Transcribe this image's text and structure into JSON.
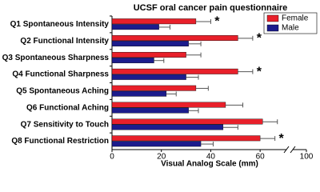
{
  "chart_data": {
    "type": "bar",
    "orientation": "horizontal",
    "title": "UCSF oral cancer pain questionnaire",
    "x_label": "Visual Analog Scale (mm)",
    "categories": [
      "Q1 Spontaneous Intensity",
      "Q2 Functional Intensity",
      "Q3 Spontaneous Sharpness",
      "Q4 Functional Sharpness",
      "Q5 Spontaneous Aching",
      "Q6 Functional Aching",
      "Q7 Sensitivity to Touch",
      "Q8 Functional Restriction"
    ],
    "series": [
      {
        "name": "Female",
        "color": "#e8202a",
        "values": [
          34,
          51,
          30,
          51,
          34,
          46,
          61,
          60
        ],
        "errors": [
          6,
          6,
          6,
          6,
          5,
          7,
          6,
          6
        ]
      },
      {
        "name": "Male",
        "color": "#1c1c8c",
        "values": [
          19,
          31,
          17,
          30,
          22,
          31,
          45,
          36
        ],
        "errors": [
          4.5,
          5,
          4,
          5,
          4,
          4,
          6,
          5
        ]
      }
    ],
    "annotations": [
      "*",
      "*",
      null,
      "*",
      null,
      null,
      null,
      "*"
    ],
    "xlim": [
      0,
      100
    ],
    "xticks": [
      0,
      20,
      40,
      60,
      100
    ],
    "xbreak": [
      70,
      95
    ],
    "legend": "top-right"
  }
}
